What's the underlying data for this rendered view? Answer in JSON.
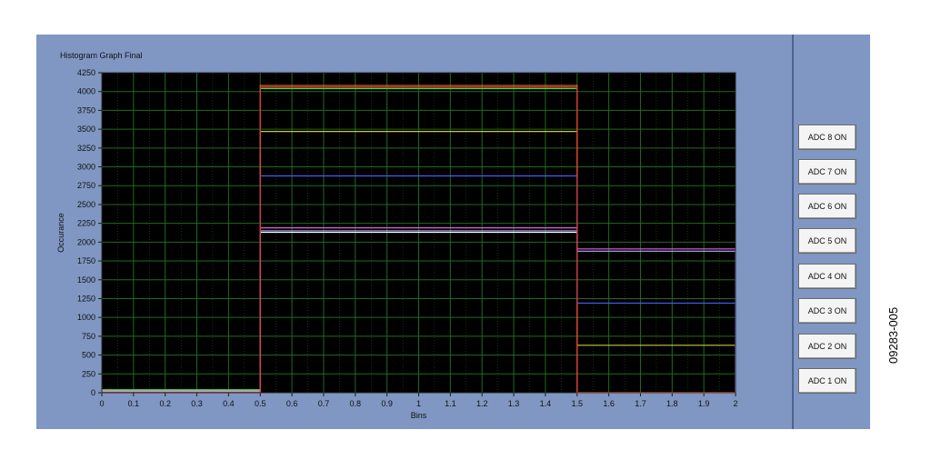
{
  "graph": {
    "title": "Histogram Graph Final"
  },
  "chart_data": {
    "type": "line",
    "xlabel": "Bins",
    "ylabel": "Occurance",
    "xlim": [
      0,
      2
    ],
    "ylim": [
      0,
      4250
    ],
    "x_ticks": [
      "0",
      "0.1",
      "0.2",
      "0.3",
      "0.4",
      "0.5",
      "0.6",
      "0.7",
      "0.8",
      "0.9",
      "1",
      "1.1",
      "1.2",
      "1.3",
      "1.4",
      "1.5",
      "1.6",
      "1.7",
      "1.8",
      "1.9",
      "2"
    ],
    "y_ticks": [
      "0",
      "250",
      "500",
      "750",
      "1000",
      "1250",
      "1500",
      "1750",
      "2000",
      "2250",
      "2500",
      "2750",
      "3000",
      "3250",
      "3500",
      "3750",
      "4000",
      "4250"
    ],
    "grid": true,
    "background": "#000000",
    "grid_color": "#1f6b1f",
    "series": [
      {
        "color": "#ffffff",
        "bins": [
          {
            "x0": 0,
            "x1": 0.5,
            "y": 20
          },
          {
            "x0": 0.5,
            "x1": 1.5,
            "y": 2130
          },
          {
            "x0": 1.5,
            "x1": 2,
            "y": 0
          }
        ]
      },
      {
        "color": "#39e639",
        "bins": [
          {
            "x0": 0,
            "x1": 0.5,
            "y": 40
          },
          {
            "x0": 0.5,
            "x1": 1.5,
            "y": 4040
          },
          {
            "x0": 1.5,
            "x1": 2,
            "y": 0
          }
        ]
      },
      {
        "color": "#e07028",
        "bins": [
          {
            "x0": 0,
            "x1": 0.5,
            "y": 10
          },
          {
            "x0": 0.5,
            "x1": 1.5,
            "y": 4080
          },
          {
            "x0": 1.5,
            "x1": 2,
            "y": 0
          }
        ]
      },
      {
        "color": "#c8c840",
        "bins": [
          {
            "x0": 0,
            "x1": 0.5,
            "y": 30
          },
          {
            "x0": 0.5,
            "x1": 1.5,
            "y": 3470
          },
          {
            "x0": 1.5,
            "x1": 2,
            "y": 630
          }
        ]
      },
      {
        "color": "#4a58ff",
        "bins": [
          {
            "x0": 0,
            "x1": 0.5,
            "y": 20
          },
          {
            "x0": 0.5,
            "x1": 1.5,
            "y": 2880
          },
          {
            "x0": 1.5,
            "x1": 2,
            "y": 1190
          }
        ]
      },
      {
        "color": "#e060e0",
        "bins": [
          {
            "x0": 0,
            "x1": 0.5,
            "y": 10
          },
          {
            "x0": 0.5,
            "x1": 1.5,
            "y": 2190
          },
          {
            "x0": 1.5,
            "x1": 2,
            "y": 1910
          }
        ]
      },
      {
        "color": "#b0b0ff",
        "bins": [
          {
            "x0": 0,
            "x1": 0.5,
            "y": 15
          },
          {
            "x0": 0.5,
            "x1": 1.5,
            "y": 2150
          },
          {
            "x0": 1.5,
            "x1": 2,
            "y": 1880
          }
        ]
      },
      {
        "color": "#e03030",
        "bins": [
          {
            "x0": 0,
            "x1": 0.5,
            "y": 5
          },
          {
            "x0": 0.5,
            "x1": 1.5,
            "y": 4060
          },
          {
            "x0": 1.5,
            "x1": 2,
            "y": 5
          }
        ]
      }
    ]
  },
  "buttons": [
    {
      "label": "ADC 8 ON"
    },
    {
      "label": "ADC 7 ON"
    },
    {
      "label": "ADC 6 ON"
    },
    {
      "label": "ADC 5 ON"
    },
    {
      "label": "ADC 4 ON"
    },
    {
      "label": "ADC 3 ON"
    },
    {
      "label": "ADC 2 ON"
    },
    {
      "label": "ADC 1 ON"
    }
  ],
  "figure_id": "09283-005"
}
